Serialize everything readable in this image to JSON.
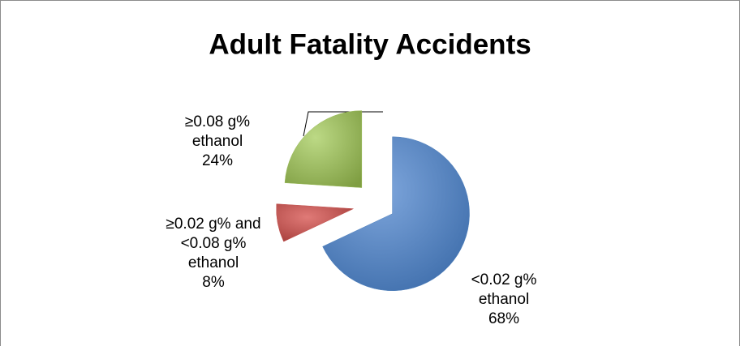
{
  "chart_data": {
    "type": "pie",
    "title": "Adult Fatality Accidents",
    "categories": [
      "<0.02 g% ethanol",
      "≥0.02 g%  and <0.08 g% ethanol",
      "≥0.08 g% ethanol"
    ],
    "values": [
      68,
      8,
      24
    ],
    "value_labels": [
      "68%",
      "8%",
      "24%"
    ],
    "colors": [
      "#4f81bd",
      "#c0504d",
      "#9bbb59"
    ],
    "exploded": true
  }
}
